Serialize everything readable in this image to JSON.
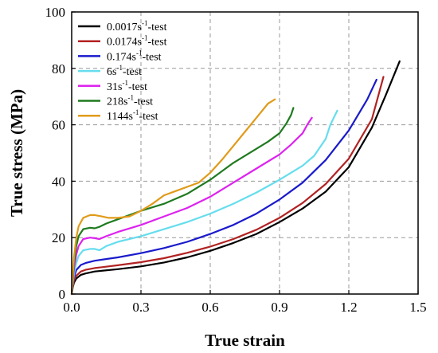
{
  "chart_data": {
    "type": "line",
    "xlabel": "True strain",
    "ylabel": "True stress (MPa)",
    "xlim": [
      0,
      1.5
    ],
    "ylim": [
      0,
      100
    ],
    "x_ticks": [
      "0.0",
      "0.3",
      "0.6",
      "0.9",
      "1.2",
      "1.5"
    ],
    "y_ticks": [
      "0",
      "20",
      "40",
      "60",
      "80",
      "100"
    ],
    "grid": true,
    "grid_style": "dashed",
    "legend_position": "top-left",
    "series": [
      {
        "name": "0.0017s-1-test",
        "legend": {
          "base": "0.0017s",
          "sup": "-1",
          "suffix": "-test"
        },
        "color": "#000000",
        "x": [
          0,
          0.005,
          0.01,
          0.02,
          0.04,
          0.06,
          0.1,
          0.2,
          0.3,
          0.4,
          0.5,
          0.6,
          0.7,
          0.8,
          0.9,
          1.0,
          1.1,
          1.2,
          1.3,
          1.36,
          1.42
        ],
        "y": [
          0,
          2.5,
          4,
          5.5,
          6.8,
          7.3,
          8,
          8.8,
          9.8,
          11.2,
          13,
          15.3,
          18.1,
          21.3,
          25.5,
          30.3,
          36.3,
          45,
          59,
          70.5,
          82.5
        ]
      },
      {
        "name": "0.0174s-1-test",
        "legend": {
          "base": "0.0174s",
          "sup": "-1",
          "suffix": "-test"
        },
        "color": "#b22222",
        "x": [
          0,
          0.005,
          0.01,
          0.02,
          0.04,
          0.06,
          0.1,
          0.2,
          0.3,
          0.4,
          0.5,
          0.6,
          0.7,
          0.8,
          0.9,
          1.0,
          1.1,
          1.2,
          1.3,
          1.35
        ],
        "y": [
          0,
          3,
          4.8,
          6.5,
          8,
          8.6,
          9.2,
          10.2,
          11.3,
          12.7,
          14.6,
          16.8,
          19.5,
          22.8,
          27,
          32.3,
          39,
          48,
          62,
          77
        ]
      },
      {
        "name": "0.174s-1-test",
        "legend": {
          "base": "0.174s",
          "sup": "-1",
          "suffix": "-test"
        },
        "color": "#1a1acc",
        "x": [
          0,
          0.005,
          0.01,
          0.02,
          0.04,
          0.06,
          0.1,
          0.2,
          0.3,
          0.4,
          0.5,
          0.6,
          0.7,
          0.8,
          0.9,
          1.0,
          1.1,
          1.2,
          1.28,
          1.32
        ],
        "y": [
          0,
          3.5,
          6,
          8.5,
          10.3,
          11,
          11.8,
          13,
          14.5,
          16.3,
          18.5,
          21.3,
          24.5,
          28.5,
          33.5,
          39.5,
          47.5,
          58,
          69,
          76
        ]
      },
      {
        "name": "6s-1-test",
        "legend": {
          "base": "6s",
          "sup": "-1",
          "suffix": "-test"
        },
        "color": "#66ddee",
        "x": [
          0,
          0.005,
          0.01,
          0.02,
          0.03,
          0.05,
          0.08,
          0.1,
          0.12,
          0.15,
          0.2,
          0.3,
          0.4,
          0.5,
          0.6,
          0.7,
          0.8,
          0.9,
          1.0,
          1.05,
          1.1,
          1.12,
          1.15
        ],
        "y": [
          0,
          4,
          7,
          11,
          13.5,
          15.5,
          16,
          16,
          15.5,
          17,
          18.5,
          20.5,
          23,
          25.5,
          28.5,
          32,
          36,
          40.5,
          45.5,
          49,
          55,
          60,
          65
        ]
      },
      {
        "name": "31s-1-test",
        "legend": {
          "base": "31s",
          "sup": "-1",
          "suffix": "-test"
        },
        "color": "#dd22ee",
        "x": [
          0,
          0.005,
          0.01,
          0.02,
          0.03,
          0.05,
          0.08,
          0.1,
          0.12,
          0.15,
          0.2,
          0.3,
          0.4,
          0.5,
          0.6,
          0.7,
          0.8,
          0.9,
          0.95,
          1.0,
          1.02,
          1.04
        ],
        "y": [
          0,
          5,
          9,
          14,
          17,
          19.5,
          20,
          19.8,
          19.5,
          20.5,
          22,
          24.5,
          27.5,
          30.5,
          34.5,
          39.5,
          44.5,
          49.5,
          53,
          57,
          60,
          62.5
        ]
      },
      {
        "name": "218s-1-test",
        "legend": {
          "base": "218s",
          "sup": "-1",
          "suffix": "-test"
        },
        "color": "#1f7a1f",
        "x": [
          0,
          0.005,
          0.01,
          0.02,
          0.03,
          0.05,
          0.08,
          0.1,
          0.12,
          0.15,
          0.2,
          0.3,
          0.4,
          0.5,
          0.6,
          0.7,
          0.8,
          0.85,
          0.9,
          0.93,
          0.95,
          0.96
        ],
        "y": [
          0,
          6,
          11,
          17,
          20.5,
          23,
          23.5,
          23.3,
          23.8,
          25,
          26.5,
          29.5,
          32,
          35.5,
          40.5,
          46.5,
          51.5,
          54,
          57,
          60.5,
          63.5,
          66
        ]
      },
      {
        "name": "1144s-1-test",
        "legend": {
          "base": "1144s",
          "sup": "-1",
          "suffix": "-test"
        },
        "color": "#e09b1a",
        "x": [
          0,
          0.005,
          0.01,
          0.02,
          0.03,
          0.05,
          0.08,
          0.1,
          0.13,
          0.16,
          0.2,
          0.25,
          0.3,
          0.35,
          0.4,
          0.45,
          0.5,
          0.55,
          0.6,
          0.65,
          0.7,
          0.75,
          0.8,
          0.85,
          0.88
        ],
        "y": [
          0,
          7,
          13,
          20,
          24,
          27,
          28,
          28,
          27.5,
          27,
          27,
          27.5,
          29.5,
          32,
          35,
          36.5,
          38,
          39.5,
          43,
          47.5,
          52.5,
          57.5,
          62.5,
          67.5,
          69
        ]
      }
    ]
  }
}
